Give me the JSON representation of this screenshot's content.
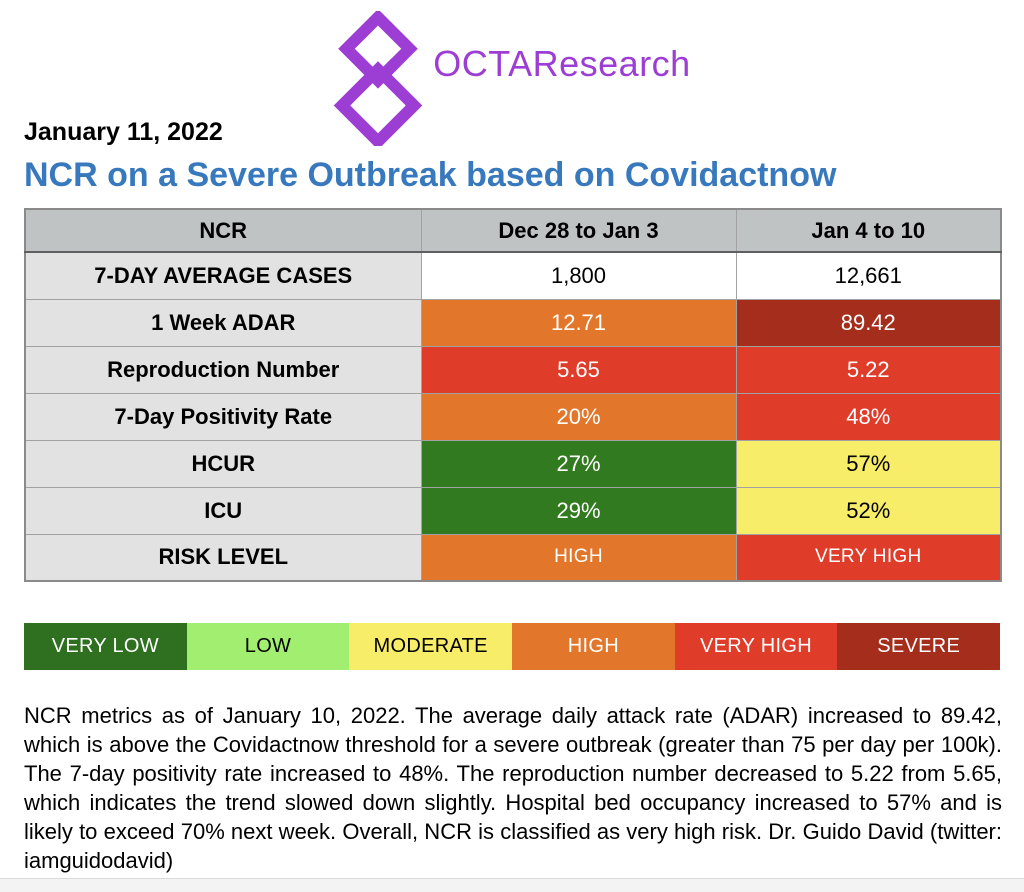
{
  "logo": {
    "text": "OCTAResearch",
    "color": "#9C3ED4",
    "icon": "interlocking-diamonds-icon"
  },
  "date_line": "January 11, 2022",
  "title": {
    "text": "NCR on a Severe Outbreak based on Covidactnow",
    "color": "#3879BE"
  },
  "table": {
    "columns": [
      "NCR",
      "Dec 28 to Jan 3",
      "Jan 4 to 10"
    ],
    "rows": [
      {
        "label": "7-DAY AVERAGE CASES",
        "values": [
          {
            "text": "1,800",
            "bg": "#ffffff",
            "fg": "#000000"
          },
          {
            "text": "12,661",
            "bg": "#ffffff",
            "fg": "#000000"
          }
        ]
      },
      {
        "label": "1 Week ADAR",
        "values": [
          {
            "text": "12.71",
            "bg": "#E2772C",
            "fg": "#ffffff"
          },
          {
            "text": "89.42",
            "bg": "#A52D1B",
            "fg": "#ffffff"
          }
        ]
      },
      {
        "label": "Reproduction Number",
        "values": [
          {
            "text": "5.65",
            "bg": "#DF3C2A",
            "fg": "#ffffff"
          },
          {
            "text": "5.22",
            "bg": "#DF3C2A",
            "fg": "#ffffff"
          }
        ]
      },
      {
        "label": "7-Day Positivity Rate",
        "values": [
          {
            "text": "20%",
            "bg": "#E2772C",
            "fg": "#ffffff"
          },
          {
            "text": "48%",
            "bg": "#DF3C2A",
            "fg": "#ffffff"
          }
        ]
      },
      {
        "label": "HCUR",
        "values": [
          {
            "text": "27%",
            "bg": "#317A1F",
            "fg": "#ffffff"
          },
          {
            "text": "57%",
            "bg": "#F8ED68",
            "fg": "#000000"
          }
        ]
      },
      {
        "label": "ICU",
        "values": [
          {
            "text": "29%",
            "bg": "#317A1F",
            "fg": "#ffffff"
          },
          {
            "text": "52%",
            "bg": "#F8ED68",
            "fg": "#000000"
          }
        ]
      },
      {
        "label": "RISK LEVEL",
        "small": true,
        "values": [
          {
            "text": "HIGH",
            "bg": "#E2772C",
            "fg": "#ffffff",
            "small": true
          },
          {
            "text": "VERY HIGH",
            "bg": "#DF3C2A",
            "fg": "#ffffff",
            "small": true
          }
        ]
      }
    ]
  },
  "legend": [
    {
      "label": "VERY LOW",
      "bg": "#2E7020",
      "fg": "#ffffff"
    },
    {
      "label": "LOW",
      "bg": "#A2EE70",
      "fg": "#000000"
    },
    {
      "label": "MODERATE",
      "bg": "#F8ED68",
      "fg": "#000000"
    },
    {
      "label": "HIGH",
      "bg": "#E2772C",
      "fg": "#ffffff"
    },
    {
      "label": "VERY HIGH",
      "bg": "#DF3C2A",
      "fg": "#ffffff"
    },
    {
      "label": "SEVERE",
      "bg": "#A52D1B",
      "fg": "#ffffff"
    }
  ],
  "summary": "NCR metrics as of January 10, 2022. The average daily attack rate (ADAR) increased to 89.42, which is above the Covidactnow threshold for a severe outbreak (greater than 75 per day per 100k). The 7-day positivity rate increased to 48%. The reproduction number decreased to 5.22 from 5.65, which indicates the trend slowed down slightly. Hospital bed occupancy increased to 57% and is likely to exceed 70% next week. Overall, NCR is classified as very high risk. Dr. Guido David (twitter: iamguidodavid)",
  "chart_data": {
    "type": "table",
    "title": "NCR on a Severe Outbreak based on Covidactnow",
    "columns": [
      "NCR",
      "Dec 28 to Jan 3",
      "Jan 4 to 10"
    ],
    "rows": [
      [
        "7-DAY AVERAGE CASES",
        "1,800",
        "12,661"
      ],
      [
        "1 Week ADAR",
        "12.71",
        "89.42"
      ],
      [
        "Reproduction Number",
        "5.65",
        "5.22"
      ],
      [
        "7-Day Positivity Rate",
        "20%",
        "48%"
      ],
      [
        "HCUR",
        "27%",
        "57%"
      ],
      [
        "ICU",
        "29%",
        "52%"
      ],
      [
        "RISK LEVEL",
        "HIGH",
        "VERY HIGH"
      ]
    ],
    "legend": [
      "VERY LOW",
      "LOW",
      "MODERATE",
      "HIGH",
      "VERY HIGH",
      "SEVERE"
    ],
    "legend_position": "below-table",
    "notes": "Cell colors encode risk level: green=low, yellow=moderate, orange=high, red=very high, dark red=severe"
  }
}
